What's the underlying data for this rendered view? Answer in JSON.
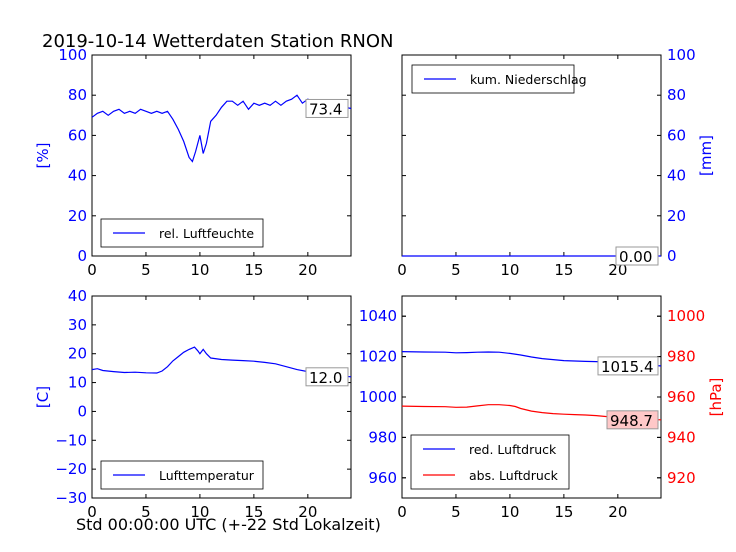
{
  "figure": {
    "title": "2019-10-14 Wetterdaten Station RNON",
    "xlabel": "Std 00:00:00 UTC (+-22 Std Lokalzeit)"
  },
  "chart_data": [
    {
      "id": "humidity",
      "type": "line",
      "ylabel": "[%]",
      "ylabel_color": "#0000ff",
      "y_side": "left",
      "xlim": [
        0,
        24
      ],
      "ylim": [
        0,
        100
      ],
      "xticks": [
        0,
        5,
        10,
        15,
        20
      ],
      "yticks": [
        0,
        20,
        40,
        60,
        80,
        100
      ],
      "tick_color": "#0000ff",
      "legend_position": "lower-left",
      "series": [
        {
          "name": "rel. Luftfeuchte",
          "color": "#0000ff",
          "x": [
            0,
            0.5,
            1,
            1.5,
            2,
            2.5,
            3,
            3.5,
            4,
            4.5,
            5,
            5.5,
            6,
            6.5,
            7,
            7.5,
            8,
            8.5,
            9,
            9.3,
            9.6,
            10,
            10.3,
            10.6,
            11,
            11.5,
            12,
            12.5,
            13,
            13.5,
            14,
            14.5,
            15,
            15.5,
            16,
            16.5,
            17,
            17.5,
            18,
            18.5,
            19,
            19.5,
            20,
            20.5,
            21,
            21.5,
            22,
            22.5,
            23,
            23.5,
            24
          ],
          "y": [
            69,
            71,
            72,
            70,
            72,
            73,
            71,
            72,
            71,
            73,
            72,
            71,
            72,
            71,
            72,
            68,
            63,
            57,
            49,
            47,
            52,
            60,
            51,
            56,
            67,
            70,
            74,
            77,
            77,
            75,
            77,
            73,
            76,
            75,
            76,
            75,
            77,
            75,
            77,
            78,
            80,
            76,
            78,
            77,
            77,
            75,
            74,
            74,
            73,
            74,
            73.4
          ]
        }
      ],
      "value_label": "73.4",
      "value_label_bg": "#ffffff"
    },
    {
      "id": "precipitation",
      "type": "line",
      "ylabel": "[mm]",
      "ylabel_color": "#0000ff",
      "y_side": "right",
      "xlim": [
        0,
        24
      ],
      "ylim": [
        0,
        100
      ],
      "xticks": [
        0,
        5,
        10,
        15,
        20
      ],
      "yticks": [
        0,
        20,
        40,
        60,
        80,
        100
      ],
      "tick_color": "#0000ff",
      "legend_position": "upper-left",
      "series": [
        {
          "name": "kum. Niederschlag",
          "color": "#0000ff",
          "x": [
            0,
            24
          ],
          "y": [
            0,
            0
          ]
        }
      ],
      "value_label": "0.00",
      "value_label_bg": "#ffffff"
    },
    {
      "id": "temperature",
      "type": "line",
      "ylabel": "[C]",
      "ylabel_color": "#0000ff",
      "y_side": "left",
      "xlim": [
        0,
        24
      ],
      "ylim": [
        -30,
        40
      ],
      "xticks": [
        0,
        5,
        10,
        15,
        20
      ],
      "yticks": [
        -30,
        -20,
        -10,
        0,
        10,
        20,
        30,
        40
      ],
      "tick_color": "#0000ff",
      "legend_position": "lower-left",
      "series": [
        {
          "name": "Lufttemperatur",
          "color": "#0000ff",
          "x": [
            0,
            0.5,
            1,
            2,
            3,
            4,
            5,
            6,
            6.5,
            7,
            7.5,
            8,
            8.5,
            9,
            9.5,
            9.8,
            10,
            10.3,
            10.6,
            11,
            12,
            13,
            14,
            15,
            16,
            17,
            18,
            19,
            20,
            21,
            22,
            23,
            24
          ],
          "y": [
            14.5,
            14.8,
            14.2,
            13.8,
            13.5,
            13.6,
            13.4,
            13.3,
            14.0,
            15.5,
            17.5,
            19.0,
            20.5,
            21.5,
            22.3,
            21.0,
            20.0,
            21.5,
            20.0,
            18.5,
            18.0,
            17.8,
            17.6,
            17.4,
            17.0,
            16.5,
            15.5,
            14.5,
            13.8,
            13.2,
            12.8,
            12.3,
            12.0
          ]
        }
      ],
      "value_label": "12.0",
      "value_label_bg": "#ffffff"
    },
    {
      "id": "pressure",
      "type": "line",
      "ylabel_left": "",
      "ylabel_right": "[hPa]",
      "ylabel_right_color": "#ff0000",
      "xlim": [
        0,
        24
      ],
      "ylim_left": [
        950,
        1050
      ],
      "ylim_right": [
        910,
        1010
      ],
      "xticks": [
        0,
        5,
        10,
        15,
        20
      ],
      "yticks_left": [
        960,
        980,
        1000,
        1020,
        1040
      ],
      "yticks_right": [
        920,
        940,
        960,
        980,
        1000
      ],
      "tick_color_left": "#0000ff",
      "tick_color_right": "#ff0000",
      "legend_position": "lower-left",
      "series": [
        {
          "name": "red. Luftdruck",
          "color": "#0000ff",
          "axis": "left",
          "x": [
            0,
            2,
            4,
            5,
            6,
            7,
            8,
            9,
            10,
            11,
            12,
            13,
            14,
            15,
            16,
            17,
            18,
            19,
            20,
            21,
            22,
            23,
            24
          ],
          "y": [
            1022.5,
            1022.3,
            1022.2,
            1021.9,
            1022.0,
            1022.2,
            1022.3,
            1022.2,
            1021.6,
            1020.8,
            1019.8,
            1019.0,
            1018.5,
            1018.0,
            1017.8,
            1017.6,
            1017.5,
            1017.2,
            1016.8,
            1016.3,
            1015.9,
            1015.6,
            1015.4
          ]
        },
        {
          "name": "abs. Luftdruck",
          "color": "#ff0000",
          "axis": "right",
          "x": [
            0,
            2,
            4,
            5,
            6,
            7,
            8,
            9,
            10,
            10.5,
            11,
            12,
            13,
            14,
            15,
            16,
            17,
            18,
            19,
            20,
            21,
            22,
            23,
            24
          ],
          "y": [
            955.5,
            955.3,
            955.2,
            954.9,
            955.0,
            955.6,
            956.2,
            956.2,
            955.8,
            955.3,
            954.3,
            953.0,
            952.3,
            951.8,
            951.5,
            951.3,
            951.1,
            950.8,
            950.3,
            949.8,
            949.4,
            949.0,
            948.8,
            948.7
          ]
        }
      ],
      "value_labels": [
        {
          "text": "1015.4",
          "axis": "left",
          "value": 1015.4,
          "bg": "#ffffff"
        },
        {
          "text": "948.7",
          "axis": "right",
          "value": 948.7,
          "bg": "#ffc8c8"
        }
      ]
    }
  ]
}
